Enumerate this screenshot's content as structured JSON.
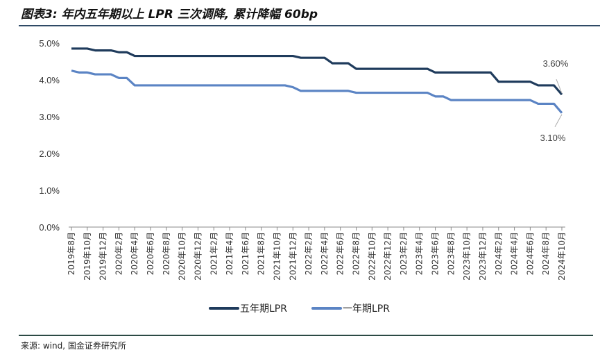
{
  "title": "图表3: 年内五年期以上 LPR 三次调降, 累计降幅 60bp",
  "source": "来源: wind, 国金证券研究所",
  "colors": {
    "five_year": "#1f3b5c",
    "one_year": "#5b84c4"
  },
  "chart_data": {
    "type": "line",
    "title": "图表3: 年内五年期以上 LPR 三次调降, 累计降幅 60bp",
    "ylim": [
      0,
      5
    ],
    "yticks": [
      "0.0%",
      "1.0%",
      "2.0%",
      "3.0%",
      "4.0%",
      "5.0%"
    ],
    "start": "2019-08",
    "xtick_labels": [
      "2019年8月",
      "2019年10月",
      "2019年12月",
      "2020年2月",
      "2020年4月",
      "2020年6月",
      "2020年8月",
      "2020年10月",
      "2020年12月",
      "2021年2月",
      "2021年4月",
      "2021年6月",
      "2021年8月",
      "2021年10月",
      "2021年12月",
      "2022年2月",
      "2022年4月",
      "2022年6月",
      "2022年8月",
      "2022年10月",
      "2022年12月",
      "2023年2月",
      "2023年4月",
      "2023年6月",
      "2023年8月",
      "2023年10月",
      "2023年12月",
      "2024年2月",
      "2024年4月",
      "2024年6月",
      "2024年8月",
      "2024年10月"
    ],
    "legend": "bottom",
    "series": [
      {
        "name": "五年期LPR",
        "values": [
          4.85,
          4.85,
          4.85,
          4.8,
          4.8,
          4.8,
          4.75,
          4.75,
          4.65,
          4.65,
          4.65,
          4.65,
          4.65,
          4.65,
          4.65,
          4.65,
          4.65,
          4.65,
          4.65,
          4.65,
          4.65,
          4.65,
          4.65,
          4.65,
          4.65,
          4.65,
          4.65,
          4.65,
          4.65,
          4.6,
          4.6,
          4.6,
          4.6,
          4.45,
          4.45,
          4.45,
          4.3,
          4.3,
          4.3,
          4.3,
          4.3,
          4.3,
          4.3,
          4.3,
          4.3,
          4.3,
          4.2,
          4.2,
          4.2,
          4.2,
          4.2,
          4.2,
          4.2,
          4.2,
          3.95,
          3.95,
          3.95,
          3.95,
          3.95,
          3.85,
          3.85,
          3.85,
          3.6
        ]
      },
      {
        "name": "一年期LPR",
        "values": [
          4.25,
          4.2,
          4.2,
          4.15,
          4.15,
          4.15,
          4.05,
          4.05,
          3.85,
          3.85,
          3.85,
          3.85,
          3.85,
          3.85,
          3.85,
          3.85,
          3.85,
          3.85,
          3.85,
          3.85,
          3.85,
          3.85,
          3.85,
          3.85,
          3.85,
          3.85,
          3.85,
          3.85,
          3.8,
          3.7,
          3.7,
          3.7,
          3.7,
          3.7,
          3.7,
          3.7,
          3.65,
          3.65,
          3.65,
          3.65,
          3.65,
          3.65,
          3.65,
          3.65,
          3.65,
          3.65,
          3.55,
          3.55,
          3.45,
          3.45,
          3.45,
          3.45,
          3.45,
          3.45,
          3.45,
          3.45,
          3.45,
          3.45,
          3.45,
          3.35,
          3.35,
          3.35,
          3.1
        ]
      }
    ],
    "annotations": [
      "3.60%",
      "3.10%"
    ]
  }
}
